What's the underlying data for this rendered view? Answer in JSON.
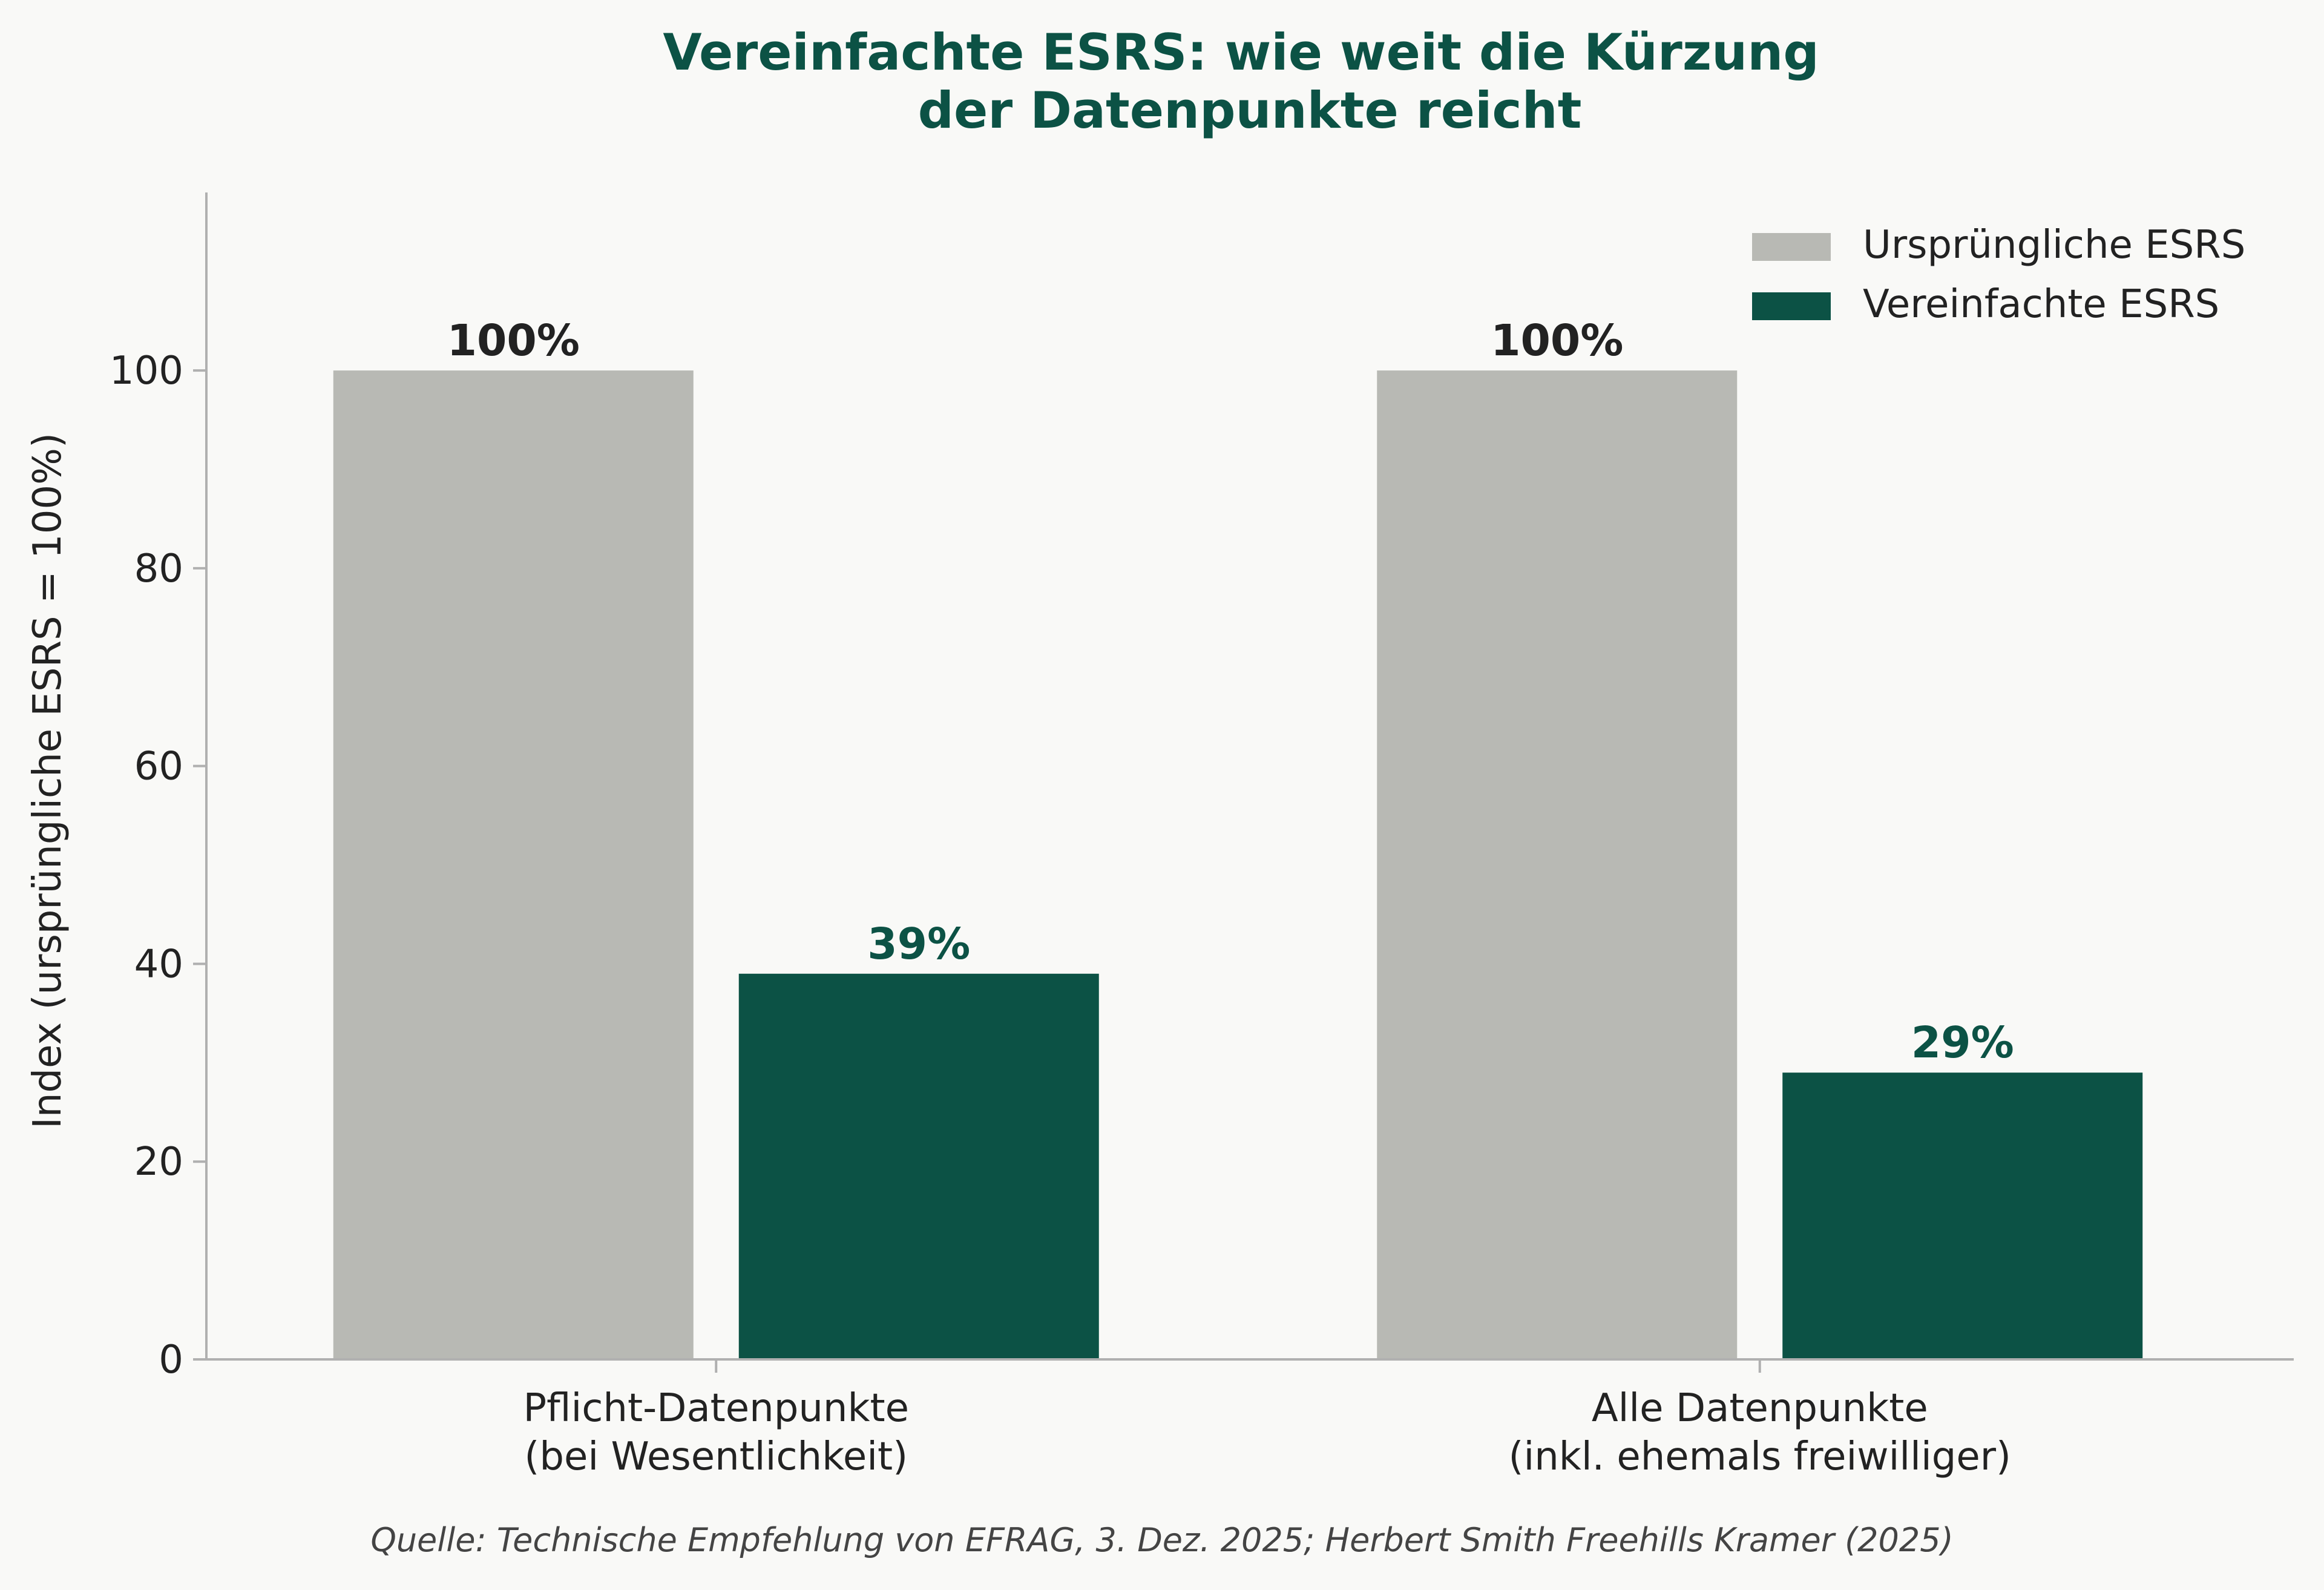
{
  "chart_data": {
    "type": "bar",
    "title": [
      "Vereinfachte ESRS: wie weit die Kürzung",
      "der Datenpunkte reicht"
    ],
    "ylabel": "Index (ursprüngliche ESRS = 100%)",
    "xlabel": "",
    "ylim": [
      0,
      118
    ],
    "yticks": [
      0,
      20,
      40,
      60,
      80,
      100
    ],
    "categories": [
      [
        "Pflicht-Datenpunkte",
        "(bei Wesentlichkeit)"
      ],
      [
        "Alle Datenpunkte",
        "(inkl. ehemals freiwilliger)"
      ]
    ],
    "series": [
      {
        "name": "Ursprüngliche ESRS",
        "values": [
          100,
          100
        ],
        "labels": [
          "100%",
          "100%"
        ],
        "color": "#b8b9b4",
        "label_color": "#222222"
      },
      {
        "name": "Vereinfachte ESRS",
        "values": [
          39,
          29
        ],
        "labels": [
          "39%",
          "29%"
        ],
        "color": "#0c5245",
        "label_color": "#0c5245"
      }
    ],
    "legend": "top-right",
    "grid": false,
    "source": "Quelle: Technische Empfehlung von EFRAG, 3. Dez. 2025; Herbert Smith Freehills Kramer (2025)"
  }
}
